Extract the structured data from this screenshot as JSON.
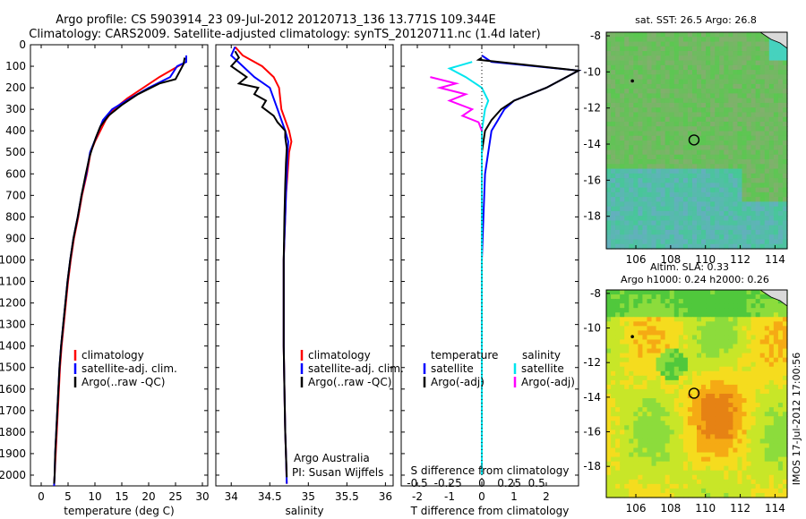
{
  "header": {
    "line1": "Argo profile: CS 5903914_23 09-Jul-2012 20120713_136 13.771S 109.344E",
    "line2": "Climatology: CARS2009. Satellite-adjusted climatology: synTS_20120711.nc (1.4d later)"
  },
  "legend_common": {
    "climatology": "climatology",
    "satellite": "satellite-adj. clim.",
    "argo": "Argo(..raw -QC)"
  },
  "notes": {
    "argo_australia": "Argo Australia",
    "pi": "PI: Susan Wijffels",
    "timestamp": "IMOS 17-Jul-2012 17:00:56"
  },
  "diff_legend": {
    "temperature": "temperature",
    "salinity": "salinity",
    "satellite": "satellite",
    "argo_adj": "Argo(-adj)"
  },
  "map_titles": {
    "sst": "sat. SST: 26.5 Argo: 26.8",
    "sla1": "Altim. SLA: 0.33",
    "sla2": "Argo h1000: 0.24 h2000: 0.26"
  },
  "colors": {
    "climatology": "#ff0000",
    "satellite": "#0000ff",
    "argo": "#000000",
    "s_satellite": "#00e5ee",
    "s_argo": "#ff00ff"
  },
  "chart_data": [
    {
      "type": "line",
      "name": "temperature-profile",
      "xlabel": "temperature (deg C)",
      "ylabel": "",
      "xlim": [
        -2,
        31
      ],
      "ylim": [
        2050,
        0
      ],
      "xticks": [
        0,
        5,
        10,
        15,
        20,
        25,
        30
      ],
      "yticks": [
        0,
        100,
        200,
        300,
        400,
        500,
        600,
        700,
        800,
        900,
        1000,
        1100,
        1200,
        1300,
        1400,
        1500,
        1600,
        1700,
        1800,
        1900,
        2000
      ],
      "series": [
        {
          "name": "climatology",
          "color": "#ff0000",
          "points": [
            [
              27.0,
              50
            ],
            [
              27.0,
              80
            ],
            [
              25.5,
              100
            ],
            [
              22.0,
              150
            ],
            [
              19.0,
              200
            ],
            [
              16.0,
              250
            ],
            [
              13.5,
              300
            ],
            [
              12.0,
              350
            ],
            [
              11.0,
              400
            ],
            [
              10.0,
              450
            ],
            [
              9.2,
              500
            ],
            [
              8.5,
              600
            ],
            [
              7.6,
              700
            ],
            [
              6.9,
              800
            ],
            [
              6.1,
              900
            ],
            [
              5.5,
              1000
            ],
            [
              5.0,
              1100
            ],
            [
              4.6,
              1200
            ],
            [
              4.2,
              1300
            ],
            [
              3.8,
              1400
            ],
            [
              3.5,
              1500
            ],
            [
              3.3,
              1600
            ],
            [
              3.1,
              1700
            ],
            [
              2.9,
              1800
            ],
            [
              2.7,
              1900
            ],
            [
              2.5,
              2000
            ],
            [
              2.4,
              2050
            ]
          ]
        },
        {
          "name": "satellite-adj. clim.",
          "color": "#0000ff",
          "points": [
            [
              27.0,
              50
            ],
            [
              27.0,
              80
            ],
            [
              25.3,
              100
            ],
            [
              24.0,
              150
            ],
            [
              20.0,
              200
            ],
            [
              16.5,
              250
            ],
            [
              13.2,
              300
            ],
            [
              11.5,
              350
            ],
            [
              10.7,
              400
            ],
            [
              9.9,
              450
            ],
            [
              9.1,
              500
            ],
            [
              8.4,
              600
            ],
            [
              7.5,
              700
            ],
            [
              6.8,
              800
            ],
            [
              6.0,
              900
            ],
            [
              5.4,
              1000
            ],
            [
              4.9,
              1100
            ],
            [
              4.5,
              1200
            ],
            [
              4.1,
              1300
            ],
            [
              3.7,
              1400
            ],
            [
              3.4,
              1500
            ],
            [
              3.2,
              1600
            ],
            [
              3.0,
              1700
            ],
            [
              2.8,
              1800
            ],
            [
              2.6,
              1900
            ],
            [
              2.5,
              2000
            ],
            [
              2.4,
              2050
            ]
          ]
        },
        {
          "name": "Argo(..raw -QC)",
          "color": "#000000",
          "points": [
            [
              26.7,
              60
            ],
            [
              26.5,
              90
            ],
            [
              25.0,
              160
            ],
            [
              22.0,
              180
            ],
            [
              18.0,
              230
            ],
            [
              15.0,
              280
            ],
            [
              12.5,
              330
            ],
            [
              11.0,
              380
            ],
            [
              10.2,
              430
            ],
            [
              9.5,
              480
            ],
            [
              9.0,
              520
            ],
            [
              8.3,
              600
            ],
            [
              7.5,
              700
            ],
            [
              6.8,
              800
            ],
            [
              6.0,
              900
            ],
            [
              5.4,
              1000
            ],
            [
              4.9,
              1100
            ],
            [
              4.5,
              1200
            ],
            [
              4.1,
              1300
            ],
            [
              3.7,
              1400
            ],
            [
              3.4,
              1500
            ],
            [
              3.2,
              1600
            ],
            [
              3.0,
              1700
            ],
            [
              2.8,
              1800
            ],
            [
              2.6,
              1900
            ],
            [
              2.5,
              2000
            ],
            [
              2.4,
              2040
            ]
          ]
        }
      ]
    },
    {
      "type": "line",
      "name": "salinity-profile",
      "xlabel": "salinity",
      "ylabel": "",
      "xlim": [
        33.8,
        36.1
      ],
      "ylim": [
        2050,
        0
      ],
      "xticks": [
        34,
        34.5,
        35,
        35.5,
        36
      ],
      "xticklabels": [
        "34",
        "34.5",
        "35",
        "35.5",
        "36"
      ],
      "series": [
        {
          "name": "climatology",
          "color": "#ff0000",
          "points": [
            [
              34.05,
              10
            ],
            [
              34.15,
              50
            ],
            [
              34.4,
              100
            ],
            [
              34.55,
              150
            ],
            [
              34.62,
              200
            ],
            [
              34.65,
              300
            ],
            [
              34.7,
              350
            ],
            [
              34.75,
              400
            ],
            [
              34.78,
              450
            ],
            [
              34.75,
              500
            ],
            [
              34.73,
              600
            ],
            [
              34.71,
              700
            ],
            [
              34.7,
              800
            ],
            [
              34.69,
              900
            ],
            [
              34.68,
              1000
            ],
            [
              34.68,
              1200
            ],
            [
              34.68,
              1400
            ],
            [
              34.69,
              1600
            ],
            [
              34.7,
              1800
            ],
            [
              34.71,
              1900
            ],
            [
              34.72,
              2040
            ]
          ]
        },
        {
          "name": "satellite-adj. clim.",
          "color": "#0000ff",
          "points": [
            [
              34.05,
              10
            ],
            [
              34.0,
              50
            ],
            [
              34.15,
              100
            ],
            [
              34.3,
              150
            ],
            [
              34.5,
              200
            ],
            [
              34.6,
              300
            ],
            [
              34.7,
              400
            ],
            [
              34.74,
              450
            ],
            [
              34.73,
              500
            ],
            [
              34.72,
              600
            ],
            [
              34.71,
              700
            ],
            [
              34.7,
              800
            ],
            [
              34.69,
              900
            ],
            [
              34.68,
              1000
            ],
            [
              34.68,
              1200
            ],
            [
              34.68,
              1400
            ],
            [
              34.69,
              1600
            ],
            [
              34.7,
              1800
            ],
            [
              34.71,
              1900
            ],
            [
              34.72,
              2040
            ]
          ]
        },
        {
          "name": "Argo(..raw -QC)",
          "color": "#000000",
          "points": [
            [
              34.05,
              30
            ],
            [
              34.1,
              60
            ],
            [
              34.0,
              100
            ],
            [
              34.2,
              150
            ],
            [
              34.1,
              180
            ],
            [
              34.35,
              200
            ],
            [
              34.3,
              230
            ],
            [
              34.45,
              260
            ],
            [
              34.4,
              290
            ],
            [
              34.55,
              330
            ],
            [
              34.6,
              360
            ],
            [
              34.7,
              400
            ],
            [
              34.7,
              430
            ],
            [
              34.72,
              480
            ],
            [
              34.71,
              550
            ],
            [
              34.7,
              650
            ],
            [
              34.69,
              800
            ],
            [
              34.68,
              1000
            ],
            [
              34.68,
              1200
            ],
            [
              34.68,
              1400
            ],
            [
              34.69,
              1600
            ],
            [
              34.7,
              1800
            ],
            [
              34.71,
              1900
            ],
            [
              34.72,
              2010
            ]
          ]
        }
      ]
    },
    {
      "type": "line",
      "name": "difference-profile",
      "xlabel": "T difference from climatology",
      "top_xlabel": "S difference from climatology",
      "xlim": [
        -2.5,
        3.0
      ],
      "ylim": [
        2050,
        0
      ],
      "xticks": [
        -2,
        -1,
        0,
        1,
        2
      ],
      "xticklabels": [
        "-2",
        "-1",
        "0",
        "1",
        "2"
      ],
      "top_xticks": [
        -0.5,
        -0.25,
        0,
        0.25,
        0.5
      ],
      "top_xticklabels": [
        "-0.5",
        "-0.25",
        "0",
        "0.25",
        "0.5"
      ],
      "series": [
        {
          "name": "temperature satellite",
          "color": "#0000ff",
          "points": [
            [
              0.0,
              50
            ],
            [
              0.3,
              80
            ],
            [
              3.0,
              120
            ],
            [
              2.0,
              200
            ],
            [
              1.0,
              260
            ],
            [
              0.7,
              300
            ],
            [
              0.5,
              350
            ],
            [
              0.3,
              400
            ],
            [
              0.2,
              500
            ],
            [
              0.1,
              600
            ],
            [
              0.05,
              800
            ],
            [
              0.0,
              1000
            ],
            [
              0.0,
              1500
            ],
            [
              0.0,
              2000
            ]
          ]
        },
        {
          "name": "temperature Argo(-adj)",
          "color": "#000000",
          "points": [
            [
              0.0,
              60
            ],
            [
              -0.1,
              70
            ],
            [
              3.0,
              120
            ],
            [
              2.0,
              200
            ],
            [
              1.0,
              260
            ],
            [
              0.6,
              300
            ],
            [
              0.3,
              350
            ],
            [
              0.1,
              400
            ],
            [
              0.0,
              500
            ],
            [
              0.0,
              1000
            ],
            [
              0.0,
              1500
            ],
            [
              0.0,
              2000
            ]
          ]
        },
        {
          "name": "salinity satellite",
          "color": "#00e5ee",
          "points": [
            [
              -0.3,
              80
            ],
            [
              -1.0,
              110
            ],
            [
              -0.5,
              150
            ],
            [
              0.0,
              200
            ],
            [
              0.2,
              260
            ],
            [
              0.1,
              300
            ],
            [
              0.0,
              400
            ],
            [
              0.0,
              700
            ],
            [
              0.0,
              1000
            ],
            [
              0.0,
              1500
            ],
            [
              0.0,
              2000
            ]
          ]
        },
        {
          "name": "salinity Argo(-adj)",
          "color": "#ff00ff",
          "points": [
            [
              -1.6,
              150
            ],
            [
              -0.8,
              180
            ],
            [
              -1.3,
              200
            ],
            [
              -0.5,
              230
            ],
            [
              -1.0,
              260
            ],
            [
              -0.3,
              300
            ],
            [
              -0.6,
              330
            ],
            [
              -0.1,
              360
            ],
            [
              0.0,
              400
            ]
          ]
        }
      ]
    },
    {
      "type": "heatmap",
      "name": "sst-map",
      "title": "sat. SST: 26.5 Argo: 26.8",
      "xticks": [
        106,
        108,
        110,
        112,
        114
      ],
      "yticks": [
        -8,
        -10,
        -12,
        -14,
        -16,
        -18
      ],
      "xlim": [
        104.3,
        114.7
      ],
      "ylim": [
        -19.8,
        -7.8
      ],
      "argo_location": [
        109.344,
        -13.771
      ]
    },
    {
      "type": "heatmap",
      "name": "sla-map",
      "title": "Altim. SLA: 0.33",
      "subtitle": "Argo h1000: 0.24 h2000: 0.26",
      "xticks": [
        106,
        108,
        110,
        112,
        114
      ],
      "yticks": [
        -8,
        -10,
        -12,
        -14,
        -16,
        -18
      ],
      "xlim": [
        104.3,
        114.7
      ],
      "ylim": [
        -19.8,
        -7.8
      ],
      "argo_location": [
        109.344,
        -13.771
      ]
    }
  ]
}
